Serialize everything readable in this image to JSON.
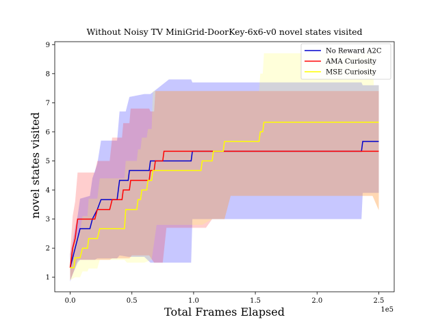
{
  "chart_data": {
    "type": "line",
    "title": "Without Noisy TV MiniGrid-DoorKey-6x6-v0 novel states visited",
    "xlabel": "Total Frames Elapsed",
    "ylabel": "novel states visited",
    "x_offset_label": "1e5",
    "xlim": [
      -12500,
      262500
    ],
    "ylim": [
      0.5,
      9.1
    ],
    "x_ticks": [
      0,
      50000,
      100000,
      150000,
      200000,
      250000
    ],
    "x_tick_labels": [
      "0.0",
      "0.5",
      "1.0",
      "1.5",
      "2.0",
      "2.5"
    ],
    "y_ticks": [
      1,
      2,
      3,
      4,
      5,
      6,
      7,
      8,
      9
    ],
    "y_tick_labels": [
      "1",
      "2",
      "3",
      "4",
      "5",
      "6",
      "7",
      "8",
      "9"
    ],
    "legend_position": "top-right",
    "grid": false,
    "series": [
      {
        "name": "No Reward A2C",
        "color": "#0000cc",
        "band_color": "#0000ff",
        "mean": [
          [
            0,
            1.33
          ],
          [
            2000,
            1.67
          ],
          [
            4000,
            2.0
          ],
          [
            6000,
            2.33
          ],
          [
            8000,
            2.67
          ],
          [
            16000,
            2.67
          ],
          [
            18000,
            3.0
          ],
          [
            22000,
            3.33
          ],
          [
            25000,
            3.67
          ],
          [
            38000,
            3.67
          ],
          [
            40000,
            4.33
          ],
          [
            47000,
            4.33
          ],
          [
            48000,
            4.67
          ],
          [
            64000,
            4.67
          ],
          [
            65000,
            5.0
          ],
          [
            68000,
            5.0
          ],
          [
            69000,
            5.0
          ],
          [
            80000,
            5.0
          ],
          [
            81000,
            5.0
          ],
          [
            98000,
            5.0
          ],
          [
            99000,
            5.33
          ],
          [
            236000,
            5.33
          ],
          [
            237000,
            5.67
          ],
          [
            250000,
            5.67
          ]
        ],
        "lower": [
          [
            0,
            0.85
          ],
          [
            2000,
            1.1
          ],
          [
            4000,
            1.3
          ],
          [
            6000,
            1.5
          ],
          [
            8000,
            1.6
          ],
          [
            16000,
            1.6
          ],
          [
            20000,
            1.6
          ],
          [
            22000,
            1.65
          ],
          [
            25000,
            1.65
          ],
          [
            38000,
            1.65
          ],
          [
            40000,
            1.75
          ],
          [
            47000,
            1.7
          ],
          [
            60000,
            1.7
          ],
          [
            65000,
            1.5
          ],
          [
            75000,
            1.5
          ],
          [
            80000,
            1.5
          ],
          [
            98000,
            1.5
          ],
          [
            99000,
            3.0
          ],
          [
            230000,
            3.0
          ],
          [
            236000,
            3.0
          ],
          [
            237000,
            3.9
          ],
          [
            250000,
            3.9
          ]
        ],
        "upper": [
          [
            0,
            1.8
          ],
          [
            2000,
            2.2
          ],
          [
            4000,
            2.7
          ],
          [
            6000,
            3.1
          ],
          [
            8000,
            3.7
          ],
          [
            16000,
            3.8
          ],
          [
            18000,
            4.4
          ],
          [
            22000,
            4.9
          ],
          [
            25000,
            5.7
          ],
          [
            38000,
            5.7
          ],
          [
            40000,
            6.7
          ],
          [
            45000,
            6.7
          ],
          [
            48000,
            7.2
          ],
          [
            60000,
            7.3
          ],
          [
            65000,
            7.3
          ],
          [
            80000,
            7.8
          ],
          [
            98000,
            7.8
          ],
          [
            99000,
            7.7
          ],
          [
            236000,
            7.7
          ],
          [
            237000,
            7.6
          ],
          [
            250000,
            7.6
          ]
        ]
      },
      {
        "name": "AMA Curiosity",
        "color": "#ff0000",
        "band_color": "#ff2222",
        "mean": [
          [
            0,
            1.33
          ],
          [
            2000,
            2.0
          ],
          [
            4000,
            2.33
          ],
          [
            6000,
            3.0
          ],
          [
            20000,
            3.0
          ],
          [
            22000,
            3.33
          ],
          [
            32000,
            3.33
          ],
          [
            34000,
            3.67
          ],
          [
            42000,
            3.67
          ],
          [
            43000,
            4.0
          ],
          [
            48000,
            4.0
          ],
          [
            49000,
            4.33
          ],
          [
            64000,
            4.33
          ],
          [
            65000,
            4.67
          ],
          [
            68000,
            4.67
          ],
          [
            69000,
            5.0
          ],
          [
            75000,
            5.0
          ],
          [
            76000,
            5.33
          ],
          [
            250000,
            5.33
          ]
        ],
        "lower": [
          [
            0,
            0.9
          ],
          [
            2000,
            1.1
          ],
          [
            6000,
            1.6
          ],
          [
            20000,
            1.6
          ],
          [
            22000,
            1.6
          ],
          [
            32000,
            1.6
          ],
          [
            34000,
            1.65
          ],
          [
            42000,
            1.65
          ],
          [
            48000,
            1.65
          ],
          [
            50000,
            1.75
          ],
          [
            64000,
            1.75
          ],
          [
            68000,
            1.5
          ],
          [
            75000,
            1.5
          ],
          [
            78000,
            2.7
          ],
          [
            110000,
            2.7
          ],
          [
            115000,
            3.0
          ],
          [
            125000,
            3.0
          ],
          [
            130000,
            3.8
          ],
          [
            245000,
            3.8
          ],
          [
            250000,
            3.3
          ]
        ],
        "upper": [
          [
            0,
            1.8
          ],
          [
            2000,
            3.1
          ],
          [
            4000,
            3.6
          ],
          [
            6000,
            4.6
          ],
          [
            20000,
            4.6
          ],
          [
            22000,
            5.0
          ],
          [
            32000,
            5.0
          ],
          [
            34000,
            5.8
          ],
          [
            42000,
            5.8
          ],
          [
            43000,
            6.3
          ],
          [
            48000,
            6.3
          ],
          [
            49000,
            6.8
          ],
          [
            64000,
            6.8
          ],
          [
            65000,
            6.7
          ],
          [
            68000,
            6.7
          ],
          [
            69000,
            7.4
          ],
          [
            75000,
            7.4
          ],
          [
            76000,
            7.4
          ],
          [
            250000,
            7.4
          ]
        ]
      },
      {
        "name": "MSE Curiosity",
        "color": "#ffff00",
        "band_color": "#ffff55",
        "mean": [
          [
            0,
            1.33
          ],
          [
            3000,
            1.33
          ],
          [
            4000,
            1.67
          ],
          [
            8000,
            1.67
          ],
          [
            10000,
            2.0
          ],
          [
            14000,
            2.0
          ],
          [
            15000,
            2.33
          ],
          [
            22000,
            2.33
          ],
          [
            24000,
            2.67
          ],
          [
            44000,
            2.67
          ],
          [
            45000,
            3.33
          ],
          [
            54000,
            3.33
          ],
          [
            55000,
            3.67
          ],
          [
            57000,
            3.67
          ],
          [
            58000,
            4.0
          ],
          [
            62000,
            4.0
          ],
          [
            63000,
            4.33
          ],
          [
            66000,
            4.33
          ],
          [
            67000,
            4.67
          ],
          [
            106000,
            4.67
          ],
          [
            107000,
            5.0
          ],
          [
            115000,
            5.0
          ],
          [
            116000,
            5.33
          ],
          [
            124000,
            5.33
          ],
          [
            125000,
            5.67
          ],
          [
            153000,
            5.67
          ],
          [
            154000,
            6.0
          ],
          [
            156000,
            6.0
          ],
          [
            157000,
            6.33
          ],
          [
            250000,
            6.33
          ]
        ],
        "lower": [
          [
            0,
            0.9
          ],
          [
            4000,
            1.0
          ],
          [
            8000,
            1.0
          ],
          [
            10000,
            1.2
          ],
          [
            14000,
            1.2
          ],
          [
            15000,
            1.3
          ],
          [
            22000,
            1.3
          ],
          [
            24000,
            1.6
          ],
          [
            44000,
            1.6
          ],
          [
            46000,
            1.5
          ],
          [
            60000,
            1.5
          ],
          [
            66000,
            1.6
          ],
          [
            70000,
            2.8
          ],
          [
            100000,
            2.8
          ],
          [
            106000,
            2.8
          ],
          [
            107000,
            2.8
          ],
          [
            115000,
            3.0
          ],
          [
            125000,
            3.0
          ],
          [
            130000,
            3.8
          ],
          [
            245000,
            3.8
          ],
          [
            250000,
            3.3
          ]
        ],
        "upper": [
          [
            0,
            1.6
          ],
          [
            4000,
            2.3
          ],
          [
            8000,
            2.6
          ],
          [
            10000,
            3.1
          ],
          [
            14000,
            3.1
          ],
          [
            15000,
            3.7
          ],
          [
            22000,
            3.7
          ],
          [
            24000,
            4.4
          ],
          [
            44000,
            4.4
          ],
          [
            45000,
            5.0
          ],
          [
            54000,
            5.0
          ],
          [
            55000,
            5.4
          ],
          [
            57000,
            5.4
          ],
          [
            58000,
            5.8
          ],
          [
            62000,
            5.8
          ],
          [
            63000,
            6.1
          ],
          [
            66000,
            6.1
          ],
          [
            67000,
            7.4
          ],
          [
            150000,
            7.4
          ],
          [
            153000,
            7.4
          ],
          [
            154000,
            8.0
          ],
          [
            156000,
            8.0
          ],
          [
            157000,
            8.7
          ],
          [
            245000,
            8.7
          ],
          [
            246000,
            7.6
          ],
          [
            250000,
            7.6
          ]
        ]
      }
    ]
  }
}
